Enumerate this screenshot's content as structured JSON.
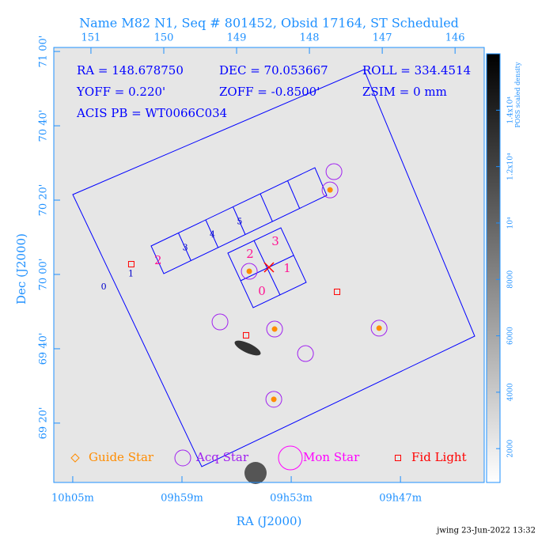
{
  "chart_data": {
    "type": "sky",
    "title": "Name M82 N1, Seq # 801452, Obsid 17164, ST Scheduled",
    "xlabel": "RA (J2000)",
    "ylabel": "Dec (J2000)",
    "xlim": [
      151.51,
      145.6
    ],
    "ylim": [
      69.067,
      71.018
    ],
    "x2ticks": [
      151,
      150,
      149,
      148,
      147,
      146
    ],
    "xticks": [
      {
        "value": 151.25,
        "label": "10h05m"
      },
      {
        "value": 149.75,
        "label": "09h59m"
      },
      {
        "value": 148.25,
        "label": "09h53m"
      },
      {
        "value": 146.75,
        "label": "09h47m"
      }
    ],
    "yticks": [
      {
        "value": 71,
        "label": "71 00'"
      },
      {
        "value": 70.6667,
        "label": "70 40'"
      },
      {
        "value": 70.3333,
        "label": "70 20'"
      },
      {
        "value": 70,
        "label": "70 00'"
      },
      {
        "value": 69.6667,
        "label": "69 40'"
      },
      {
        "value": 69.3333,
        "label": "69 20'"
      }
    ],
    "annotations": [
      "RA = 148.678750",
      "DEC = 70.053667",
      "ROLL = 334.4514",
      "YOFF = 0.220'",
      "ZOFF = -0.8500'",
      "ZSIM = 0 mm",
      "ACIS PB = WT0066C034"
    ],
    "acis_s_chips": [
      {
        "label": "0",
        "color": "#0000cd"
      },
      {
        "label": "1",
        "color": "#0000cd"
      },
      {
        "label": "2",
        "color": "#ff1493"
      },
      {
        "label": "3",
        "color": "#0000cd"
      },
      {
        "label": "4",
        "color": "#0000cd"
      },
      {
        "label": "5",
        "color": "#0000cd"
      }
    ],
    "acis_i_chips": [
      {
        "label": "2",
        "color": "#ff1493"
      },
      {
        "label": "3",
        "color": "#ff1493"
      },
      {
        "label": "0",
        "color": "#ff1493"
      },
      {
        "label": "1",
        "color": "#ff1493"
      }
    ],
    "series": [
      {
        "name": "Guide Star",
        "color": "#ff8c00",
        "x": [
          147.717,
          148.826,
          148.478,
          147.043,
          148.489
        ],
        "y": [
          70.379,
          70.014,
          69.755,
          69.759,
          69.44
        ]
      },
      {
        "name": "Acq Star",
        "color": "#a020f0",
        "x": [
          147.663,
          147.717,
          148.826,
          149.228,
          148.478,
          148.054,
          147.043,
          148.489
        ],
        "y": [
          70.461,
          70.379,
          70.014,
          69.787,
          69.755,
          69.645,
          69.759,
          69.44
        ]
      },
      {
        "name": "Mon Star",
        "color": "#ff00ff",
        "x": [],
        "y": []
      },
      {
        "name": "Fid Light",
        "color": "#ff0000",
        "x": [
          150.446,
          147.62,
          148.87
        ],
        "y": [
          70.046,
          69.922,
          69.727
        ]
      }
    ],
    "colorbar": {
      "label": "POSS scaled density",
      "lim": [
        800,
        16000
      ],
      "ticks": [
        2000,
        4000,
        6000,
        8000,
        {
          "value": 10000,
          "label": "10⁴"
        },
        {
          "value": 12000,
          "label": "1.2x10⁴"
        },
        {
          "value": 14000,
          "label": "1.4x10⁴"
        }
      ]
    }
  },
  "footer": "jwing 23-Jun-2022 13:32"
}
